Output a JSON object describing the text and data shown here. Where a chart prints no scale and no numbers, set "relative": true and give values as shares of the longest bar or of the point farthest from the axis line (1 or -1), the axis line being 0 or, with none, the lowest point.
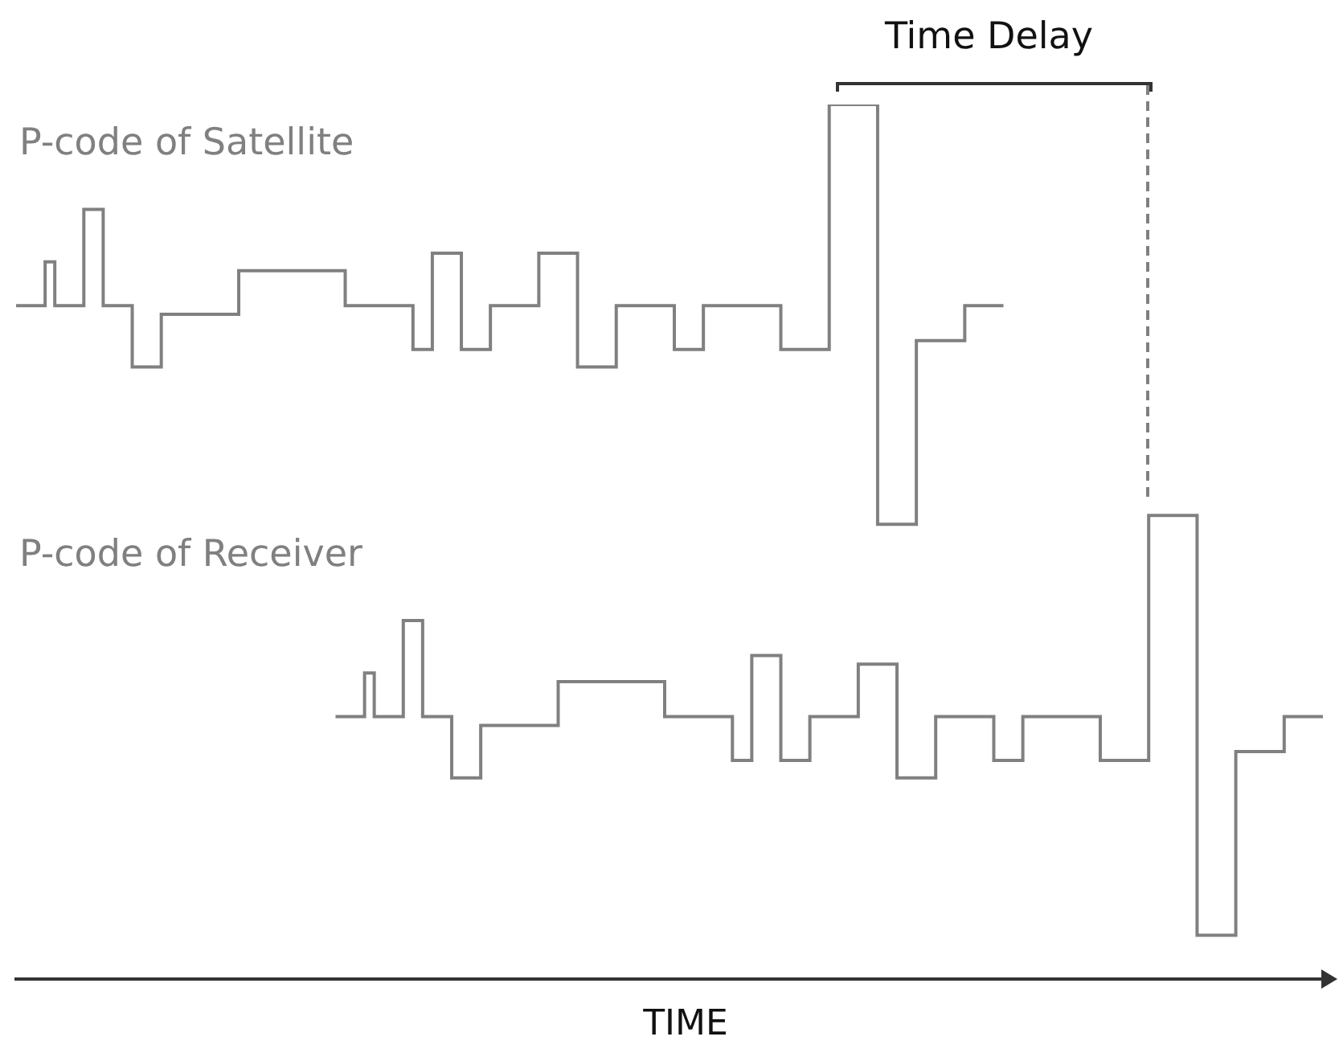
{
  "chart_data": {
    "type": "step",
    "relative": true,
    "xlabel": "TIME",
    "legend": false,
    "marker": "none",
    "line_style": "solid",
    "annotations": [
      "Time Delay"
    ],
    "categories": [
      null,
      null,
      null,
      null,
      null,
      null,
      null,
      null,
      null,
      null,
      null,
      null,
      null,
      null,
      null,
      null,
      null,
      null,
      null,
      null,
      null,
      null,
      null,
      null,
      null,
      null,
      null,
      null,
      null,
      null,
      null,
      null,
      null,
      null,
      null,
      null,
      null,
      null,
      null,
      null,
      null,
      null,
      null,
      null,
      null,
      null,
      null,
      null,
      null,
      null,
      null,
      null,
      null,
      null,
      null,
      null,
      null,
      null,
      null,
      null,
      null,
      null,
      null,
      null,
      null,
      null,
      null,
      null,
      null,
      null,
      null,
      null,
      null,
      null,
      null,
      null,
      null,
      null,
      null,
      null,
      null,
      null,
      null,
      null,
      null,
      null,
      null,
      null,
      null,
      null,
      null,
      null,
      null,
      null,
      null,
      null,
      null,
      null,
      null,
      null,
      null,
      null,
      null,
      null,
      null,
      null,
      null,
      null,
      null,
      null,
      null,
      null,
      null,
      null,
      null,
      null,
      null,
      null,
      null,
      null,
      null,
      null,
      null,
      null,
      null,
      null,
      null,
      null,
      null,
      null,
      null,
      null,
      null,
      null,
      null,
      null
    ],
    "series": [
      {
        "name": "P-code of Satellite",
        "color": "#808080",
        "values": [
          0.77,
          0.77,
          0.77,
          0.82,
          0.77,
          0.77,
          0.77,
          0.88,
          0.88,
          0.77,
          0.77,
          0.77,
          0.7,
          0.7,
          0.7,
          0.76,
          0.76,
          0.76,
          0.76,
          0.76,
          0.76,
          0.76,
          0.76,
          0.81,
          0.81,
          0.81,
          0.81,
          0.81,
          0.81,
          0.81,
          0.81,
          0.81,
          0.81,
          0.81,
          0.77,
          0.77,
          0.77,
          0.77,
          0.77,
          0.77,
          0.77,
          0.72,
          0.72,
          0.83,
          0.83,
          0.83,
          0.72,
          0.72,
          0.72,
          0.77,
          0.77,
          0.77,
          0.77,
          0.77,
          0.83,
          0.83,
          0.83,
          0.83,
          0.7,
          0.7,
          0.7,
          0.7,
          0.77,
          0.77,
          0.77,
          0.77,
          0.77,
          0.77,
          0.72,
          0.72,
          0.72,
          0.77,
          0.77,
          0.77,
          0.77,
          0.77,
          0.77,
          0.77,
          0.77,
          0.72,
          0.72,
          0.72,
          0.72,
          0.72,
          1,
          1,
          1,
          1,
          1,
          0.52,
          0.52,
          0.52,
          0.52,
          0.73,
          0.73,
          0.73,
          0.73,
          0.73,
          0.77,
          0.77,
          0.77,
          0.77,
          0.77,
          null,
          null,
          null,
          null,
          null,
          null,
          null,
          null,
          null,
          null,
          null,
          null,
          null,
          null,
          null,
          null,
          null,
          null,
          null,
          null,
          null,
          null,
          null,
          null,
          null,
          null,
          null,
          null,
          null,
          null,
          null,
          null,
          null
        ]
      },
      {
        "name": "P-code of Receiver",
        "color": "#808080",
        "values": [
          null,
          null,
          null,
          null,
          null,
          null,
          null,
          null,
          null,
          null,
          null,
          null,
          null,
          null,
          null,
          null,
          null,
          null,
          null,
          null,
          null,
          null,
          null,
          null,
          null,
          null,
          null,
          null,
          null,
          null,
          null,
          null,
          null,
          0.3,
          0.3,
          0.3,
          0.35,
          0.3,
          0.3,
          0.3,
          0.41,
          0.41,
          0.3,
          0.3,
          0.3,
          0.23,
          0.23,
          0.23,
          0.29,
          0.29,
          0.29,
          0.29,
          0.29,
          0.29,
          0.29,
          0.29,
          0.34,
          0.34,
          0.34,
          0.34,
          0.34,
          0.34,
          0.34,
          0.34,
          0.34,
          0.34,
          0.34,
          0.3,
          0.3,
          0.3,
          0.3,
          0.3,
          0.3,
          0.3,
          0.25,
          0.25,
          0.37,
          0.37,
          0.37,
          0.25,
          0.25,
          0.25,
          0.3,
          0.3,
          0.3,
          0.3,
          0.3,
          0.36,
          0.36,
          0.36,
          0.36,
          0.23,
          0.23,
          0.23,
          0.23,
          0.3,
          0.3,
          0.3,
          0.3,
          0.3,
          0.3,
          0.25,
          0.25,
          0.25,
          0.3,
          0.3,
          0.3,
          0.3,
          0.3,
          0.3,
          0.3,
          0.3,
          0.25,
          0.25,
          0.25,
          0.25,
          0.25,
          0.53,
          0.53,
          0.53,
          0.53,
          0.53,
          0.05,
          0.05,
          0.05,
          0.05,
          0.26,
          0.26,
          0.26,
          0.26,
          0.26,
          0.3,
          0.3,
          0.3,
          0.3,
          0.3
        ]
      }
    ]
  }
}
